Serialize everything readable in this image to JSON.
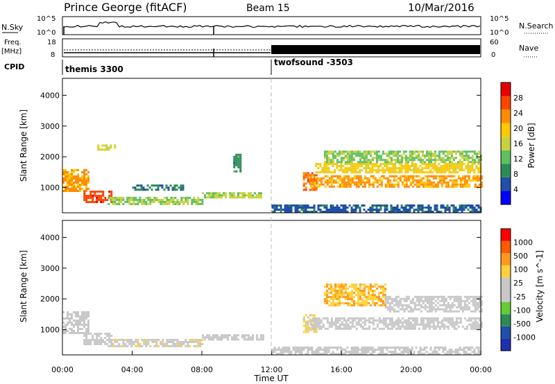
{
  "header": {
    "station": "Prince George (fitACF)",
    "beam": "Beam 15",
    "date": "10/Mar/2016"
  },
  "noise_panel": {
    "left_label": "N.Sky",
    "left_ticks": [
      "10^5",
      "10^0"
    ],
    "right_label": "N.Search",
    "right_ticks": [
      "10^5",
      "10^0"
    ]
  },
  "freq_panel": {
    "left_label_1": "Freq.",
    "left_label_2": "[MHz]",
    "left_ticks": [
      "18",
      "8"
    ],
    "right_label": "Nave",
    "right_ticks": [
      "60",
      "0"
    ]
  },
  "cpid_panel": {
    "label": "CPID",
    "segments": [
      {
        "name": "themis 3300",
        "start_hour": 0
      },
      {
        "name": "twofsound -3503",
        "start_hour": 12
      }
    ]
  },
  "colors": {
    "power_scale": [
      "#0000ff",
      "#1f4fa8",
      "#2e8b57",
      "#5fbf5f",
      "#c8d23c",
      "#ffc800",
      "#ff8c00",
      "#ff4500",
      "#e60000"
    ],
    "velocity_scale": [
      "#ff0000",
      "#ff5a00",
      "#ff9a1e",
      "#ffd23c",
      "#c8c8c8",
      "#c8c8c8",
      "#66cc33",
      "#2e8b57",
      "#1f4fa8",
      "#1e2fb0"
    ]
  },
  "chart_data": [
    {
      "type": "heatmap",
      "name": "power",
      "ylabel": "Slant Range [km]",
      "xlim": [
        0,
        24
      ],
      "ylim": [
        180,
        4550
      ],
      "yticks": [
        "1000",
        "2000",
        "3000",
        "4000"
      ],
      "colorbar_label": "Power [dB]",
      "colorbar_ticks": [
        "4",
        "8",
        "12",
        "16",
        "20",
        "24",
        "28"
      ],
      "colorbar_range": [
        0,
        32
      ],
      "bands": [
        {
          "t0": 0.0,
          "t1": 1.5,
          "r0": 900,
          "r1": 1600,
          "v": 22
        },
        {
          "t0": 1.2,
          "t1": 2.8,
          "r0": 550,
          "r1": 900,
          "v": 27
        },
        {
          "t0": 2.6,
          "t1": 8.0,
          "r0": 480,
          "r1": 700,
          "v": 14
        },
        {
          "t0": 4.0,
          "t1": 7.0,
          "r0": 900,
          "r1": 1100,
          "v": 8
        },
        {
          "t0": 2.0,
          "t1": 3.0,
          "r0": 2200,
          "r1": 2400,
          "v": 17
        },
        {
          "t0": 8.0,
          "t1": 11.5,
          "r0": 650,
          "r1": 850,
          "v": 15
        },
        {
          "t0": 9.8,
          "t1": 10.2,
          "r0": 1500,
          "r1": 2100,
          "v": 9
        },
        {
          "t0": 13.8,
          "t1": 14.6,
          "r0": 900,
          "r1": 1500,
          "v": 25
        },
        {
          "t0": 14.2,
          "t1": 24.0,
          "r0": 1000,
          "r1": 1400,
          "v": 22
        },
        {
          "t0": 14.5,
          "t1": 24.0,
          "r0": 1500,
          "r1": 1800,
          "v": 19
        },
        {
          "t0": 15.0,
          "t1": 24.0,
          "r0": 1800,
          "r1": 2200,
          "v": 14
        },
        {
          "t0": 12.0,
          "t1": 24.0,
          "r0": 200,
          "r1": 450,
          "v": 6
        }
      ]
    },
    {
      "type": "heatmap",
      "name": "velocity",
      "xlabel": "Time UT",
      "ylabel": "Slant Range [km]",
      "xlim": [
        0,
        24
      ],
      "ylim": [
        180,
        4550
      ],
      "xticks": [
        "00:00",
        "04:00",
        "08:00",
        "12:00",
        "16:00",
        "20:00",
        "00:00"
      ],
      "yticks": [
        "1000",
        "2000",
        "3000",
        "4000"
      ],
      "colorbar_label": "Velocity [m s^-1]",
      "colorbar_ticks": [
        "1000",
        "500",
        "100",
        "25",
        "-25",
        "-100",
        "-500",
        "-1000"
      ],
      "colorbar_range": [
        -1250,
        1250
      ],
      "bands": [
        {
          "t0": 0.0,
          "t1": 1.5,
          "r0": 900,
          "r1": 1600,
          "v": 0
        },
        {
          "t0": 1.2,
          "t1": 2.8,
          "r0": 550,
          "r1": 900,
          "v": 0
        },
        {
          "t0": 2.6,
          "t1": 8.0,
          "r0": 480,
          "r1": 700,
          "v": -150
        },
        {
          "t0": 8.0,
          "t1": 11.5,
          "r0": 650,
          "r1": 850,
          "v": 80
        },
        {
          "t0": 13.8,
          "t1": 14.6,
          "r0": 900,
          "r1": 1500,
          "v": -300
        },
        {
          "t0": 14.2,
          "t1": 24.0,
          "r0": 1000,
          "r1": 1400,
          "v": 0
        },
        {
          "t0": 15.0,
          "t1": 18.5,
          "r0": 1800,
          "r1": 2500,
          "v": -450
        },
        {
          "t0": 18.5,
          "t1": 24.0,
          "r0": 1600,
          "r1": 2100,
          "v": 0
        },
        {
          "t0": 12.0,
          "t1": 24.0,
          "r0": 200,
          "r1": 450,
          "v": 60
        }
      ]
    }
  ]
}
